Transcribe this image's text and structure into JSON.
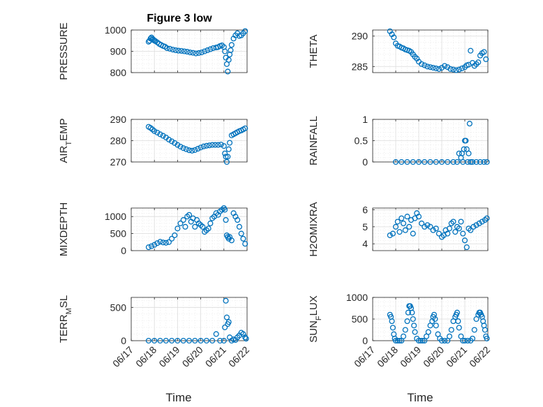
{
  "figure": {
    "title": "Figure 3 low",
    "xlabel": "Time",
    "colors": {
      "marker": "#0072BD",
      "axis": "#262626",
      "grid": "#dcdcdc"
    }
  },
  "chart_data": [
    {
      "type": "scatter",
      "ylabel": "PRESSURE",
      "title": "Figure 3 low",
      "xlim": [
        "06/17",
        "06/22"
      ],
      "ylim": [
        800,
        1000
      ],
      "xticks": [
        "06/17",
        "06/18",
        "06/19",
        "06/20",
        "06/21",
        "06/22"
      ],
      "yticks": [
        800,
        900,
        1000
      ],
      "grid": true,
      "series": [
        {
          "x": [
            "06/17 18:00",
            "06/17 19:00",
            "06/17 20:00",
            "06/17 21:00",
            "06/17 22:00",
            "06/17 23:00",
            "06/18 00:00",
            "06/18 01:00",
            "06/18 03:00",
            "06/18 05:00",
            "06/18 07:00",
            "06/18 09:00",
            "06/18 11:00",
            "06/18 13:00",
            "06/18 16:00",
            "06/18 19:00",
            "06/18 22:00",
            "06/19 01:00",
            "06/19 04:00",
            "06/19 07:00",
            "06/19 10:00",
            "06/19 13:00",
            "06/19 16:00",
            "06/19 19:00",
            "06/19 22:00",
            "06/20 01:00",
            "06/20 04:00",
            "06/20 07:00",
            "06/20 10:00",
            "06/20 13:00",
            "06/20 16:00",
            "06/20 18:00",
            "06/20 20:00",
            "06/20 22:00",
            "06/21 00:00",
            "06/21 01:00",
            "06/21 02:00",
            "06/21 03:00",
            "06/21 04:00",
            "06/21 05:00",
            "06/21 06:00",
            "06/21 07:00",
            "06/21 08:00",
            "06/21 10:00",
            "06/21 12:00",
            "06/21 14:00",
            "06/21 16:00",
            "06/21 18:00",
            "06/21 20:00",
            "06/21 22:00"
          ],
          "y": [
            945,
            950,
            960,
            965,
            958,
            955,
            950,
            948,
            942,
            935,
            930,
            925,
            922,
            915,
            912,
            908,
            905,
            903,
            902,
            900,
            898,
            895,
            893,
            890,
            892,
            895,
            900,
            905,
            910,
            915,
            918,
            920,
            925,
            928,
            920,
            900,
            870,
            840,
            805,
            860,
            885,
            905,
            930,
            960,
            975,
            985,
            972,
            975,
            985,
            995
          ]
        }
      ]
    },
    {
      "type": "scatter",
      "ylabel": "THETA",
      "xlim": [
        "06/17",
        "06/22"
      ],
      "ylim": [
        284,
        291
      ],
      "xticks": [
        "06/17",
        "06/18",
        "06/19",
        "06/20",
        "06/21",
        "06/22"
      ],
      "yticks": [
        285,
        290
      ],
      "grid": true,
      "series": [
        {
          "x": [
            "06/17 18:00",
            "06/17 20:00",
            "06/17 22:00",
            "06/18 00:00",
            "06/18 02:00",
            "06/18 04:00",
            "06/18 06:00",
            "06/18 08:00",
            "06/18 10:00",
            "06/18 12:00",
            "06/18 14:00",
            "06/18 16:00",
            "06/18 18:00",
            "06/18 20:00",
            "06/18 22:00",
            "06/19 00:00",
            "06/19 03:00",
            "06/19 06:00",
            "06/19 09:00",
            "06/19 12:00",
            "06/19 15:00",
            "06/19 18:00",
            "06/19 21:00",
            "06/20 00:00",
            "06/20 03:00",
            "06/20 06:00",
            "06/20 09:00",
            "06/20 12:00",
            "06/20 15:00",
            "06/20 18:00",
            "06/20 21:00",
            "06/21 00:00",
            "06/21 02:00",
            "06/21 04:00",
            "06/21 06:00",
            "06/21 08:00",
            "06/21 10:00",
            "06/21 12:00",
            "06/21 14:00",
            "06/21 16:00",
            "06/21 18:00",
            "06/21 20:00",
            "06/21 22:00"
          ],
          "y": [
            290.8,
            290.3,
            289.8,
            288.8,
            288.4,
            288.3,
            288.1,
            288.0,
            287.8,
            287.7,
            287.6,
            287.4,
            287.0,
            286.6,
            286.3,
            285.8,
            285.4,
            285.2,
            285.0,
            284.9,
            284.8,
            284.7,
            284.6,
            284.8,
            285.1,
            284.9,
            284.6,
            284.5,
            284.4,
            284.5,
            284.7,
            284.9,
            285.2,
            285.3,
            287.6,
            285.6,
            285.1,
            285.4,
            285.7,
            286.8,
            287.2,
            287.4,
            286.2
          ]
        }
      ]
    },
    {
      "type": "scatter",
      "ylabel": "AIR_TEMP",
      "xlim": [
        "06/17",
        "06/22"
      ],
      "ylim": [
        270,
        290
      ],
      "xticks": [
        "06/17",
        "06/18",
        "06/19",
        "06/20",
        "06/21",
        "06/22"
      ],
      "yticks": [
        270,
        280,
        290
      ],
      "grid": true,
      "series": [
        {
          "x": [
            "06/17 18:00",
            "06/17 20:00",
            "06/17 22:00",
            "06/18 00:00",
            "06/18 03:00",
            "06/18 06:00",
            "06/18 09:00",
            "06/18 12:00",
            "06/18 15:00",
            "06/18 18:00",
            "06/18 21:00",
            "06/19 00:00",
            "06/19 03:00",
            "06/19 06:00",
            "06/19 09:00",
            "06/19 12:00",
            "06/19 15:00",
            "06/19 18:00",
            "06/19 21:00",
            "06/20 00:00",
            "06/20 03:00",
            "06/20 06:00",
            "06/20 09:00",
            "06/20 12:00",
            "06/20 15:00",
            "06/20 18:00",
            "06/20 21:00",
            "06/21 00:00",
            "06/21 01:00",
            "06/21 02:00",
            "06/21 03:00",
            "06/21 04:00",
            "06/21 05:00",
            "06/21 06:00",
            "06/21 08:00",
            "06/21 10:00",
            "06/21 12:00",
            "06/21 14:00",
            "06/21 16:00",
            "06/21 18:00",
            "06/21 20:00",
            "06/21 22:00"
          ],
          "y": [
            286.5,
            286.0,
            285.3,
            284.5,
            283.8,
            283.0,
            282.3,
            281.5,
            280.5,
            279.7,
            278.9,
            278.0,
            277.2,
            276.5,
            276.0,
            275.5,
            275.3,
            275.6,
            276.2,
            276.8,
            277.3,
            277.6,
            277.8,
            278.0,
            278.0,
            278.0,
            278.2,
            277.5,
            274.0,
            272.5,
            270.0,
            272.5,
            276.0,
            279.0,
            282.5,
            283.0,
            283.5,
            284.0,
            284.5,
            284.8,
            285.3,
            285.8
          ]
        }
      ]
    },
    {
      "type": "scatter",
      "ylabel": "RAINFALL",
      "xlim": [
        "06/17",
        "06/22"
      ],
      "ylim": [
        0,
        1
      ],
      "xticks": [
        "06/17",
        "06/18",
        "06/19",
        "06/20",
        "06/21",
        "06/22"
      ],
      "yticks": [
        0,
        0.5,
        1
      ],
      "grid": true,
      "series": [
        {
          "x": [
            "06/18 00:00",
            "06/18 06:00",
            "06/18 12:00",
            "06/18 18:00",
            "06/19 00:00",
            "06/19 06:00",
            "06/19 12:00",
            "06/19 18:00",
            "06/20 00:00",
            "06/20 06:00",
            "06/20 12:00",
            "06/20 16:00",
            "06/20 18:00",
            "06/20 20:00",
            "06/20 21:00",
            "06/20 22:00",
            "06/20 23:00",
            "06/21 00:00",
            "06/21 01:00",
            "06/21 02:00",
            "06/21 03:00",
            "06/21 04:00",
            "06/21 05:00",
            "06/21 06:00",
            "06/21 08:00",
            "06/21 12:00",
            "06/21 16:00",
            "06/21 20:00",
            "06/21 23:00"
          ],
          "y": [
            0,
            0,
            0,
            0,
            0,
            0,
            0,
            0,
            0,
            0,
            0,
            0,
            0.2,
            0.1,
            0.2,
            0,
            0.3,
            0.5,
            0.5,
            0.3,
            0,
            0.2,
            0.9,
            0,
            0,
            0,
            0,
            0,
            0
          ]
        }
      ]
    },
    {
      "type": "scatter",
      "ylabel": "MIXDEPTH",
      "xlim": [
        "06/17",
        "06/22"
      ],
      "ylim": [
        0,
        1250
      ],
      "xticks": [
        "06/17",
        "06/18",
        "06/19",
        "06/20",
        "06/21",
        "06/22"
      ],
      "yticks": [
        0,
        500,
        1000
      ],
      "grid": true,
      "series": [
        {
          "x": [
            "06/17 18:00",
            "06/17 21:00",
            "06/18 00:00",
            "06/18 03:00",
            "06/18 06:00",
            "06/18 09:00",
            "06/18 12:00",
            "06/18 15:00",
            "06/18 18:00",
            "06/18 21:00",
            "06/19 00:00",
            "06/19 03:00",
            "06/19 06:00",
            "06/19 08:00",
            "06/19 10:00",
            "06/19 12:00",
            "06/19 14:00",
            "06/19 16:00",
            "06/19 18:00",
            "06/19 20:00",
            "06/19 22:00",
            "06/20 00:00",
            "06/20 02:00",
            "06/20 04:00",
            "06/20 06:00",
            "06/20 08:00",
            "06/20 10:00",
            "06/20 12:00",
            "06/20 14:00",
            "06/20 16:00",
            "06/20 18:00",
            "06/20 20:00",
            "06/20 22:00",
            "06/21 00:00",
            "06/21 01:00",
            "06/21 02:00",
            "06/21 03:00",
            "06/21 04:00",
            "06/21 05:00",
            "06/21 06:00",
            "06/21 08:00",
            "06/21 10:00",
            "06/21 12:00",
            "06/21 14:00",
            "06/21 16:00",
            "06/21 18:00",
            "06/21 20:00",
            "06/21 22:00"
          ],
          "y": [
            100,
            130,
            170,
            220,
            260,
            240,
            230,
            250,
            350,
            450,
            650,
            800,
            900,
            700,
            1000,
            1050,
            850,
            950,
            700,
            900,
            800,
            750,
            700,
            550,
            600,
            650,
            800,
            950,
            1000,
            1100,
            1050,
            1150,
            1200,
            1250,
            1200,
            900,
            450,
            400,
            350,
            400,
            300,
            1100,
            1000,
            900,
            700,
            500,
            350,
            200
          ]
        }
      ]
    },
    {
      "type": "scatter",
      "ylabel": "H2OMIXRA",
      "xlim": [
        "06/17",
        "06/22"
      ],
      "ylim": [
        3.6,
        6.1
      ],
      "xticks": [
        "06/17",
        "06/18",
        "06/19",
        "06/20",
        "06/21",
        "06/22"
      ],
      "yticks": [
        4,
        5,
        6
      ],
      "grid": true,
      "series": [
        {
          "x": [
            "06/17 18:00",
            "06/17 21:00",
            "06/18 00:00",
            "06/18 02:00",
            "06/18 04:00",
            "06/18 06:00",
            "06/18 08:00",
            "06/18 10:00",
            "06/18 12:00",
            "06/18 14:00",
            "06/18 16:00",
            "06/18 18:00",
            "06/18 20:00",
            "06/18 22:00",
            "06/19 00:00",
            "06/19 03:00",
            "06/19 06:00",
            "06/19 09:00",
            "06/19 12:00",
            "06/19 15:00",
            "06/19 18:00",
            "06/19 21:00",
            "06/20 00:00",
            "06/20 02:00",
            "06/20 04:00",
            "06/20 06:00",
            "06/20 08:00",
            "06/20 10:00",
            "06/20 12:00",
            "06/20 14:00",
            "06/20 16:00",
            "06/20 18:00",
            "06/20 20:00",
            "06/20 22:00",
            "06/21 00:00",
            "06/21 02:00",
            "06/21 04:00",
            "06/21 06:00",
            "06/21 09:00",
            "06/21 12:00",
            "06/21 15:00",
            "06/21 18:00",
            "06/21 21:00",
            "06/21 23:00"
          ],
          "y": [
            4.5,
            4.6,
            5.0,
            5.3,
            4.7,
            5.5,
            5.2,
            4.8,
            5.6,
            5.0,
            5.4,
            4.6,
            5.5,
            5.8,
            5.6,
            5.2,
            5.0,
            5.1,
            5.0,
            4.8,
            4.9,
            4.6,
            4.4,
            4.5,
            4.8,
            4.6,
            4.9,
            5.2,
            5.3,
            4.7,
            5.0,
            4.9,
            5.3,
            4.6,
            4.2,
            3.8,
            4.9,
            4.8,
            5.0,
            5.1,
            5.2,
            5.3,
            5.4,
            5.5
          ]
        }
      ]
    },
    {
      "type": "scatter",
      "ylabel": "TERR_MSL",
      "xlim": [
        "06/17",
        "06/22"
      ],
      "ylim": [
        0,
        650
      ],
      "xticks": [
        "06/17",
        "06/18",
        "06/19",
        "06/20",
        "06/21",
        "06/22"
      ],
      "yticks": [
        0,
        500
      ],
      "grid": true,
      "series": [
        {
          "x": [
            "06/17 18:00",
            "06/18 00:00",
            "06/18 06:00",
            "06/18 12:00",
            "06/18 18:00",
            "06/19 00:00",
            "06/19 06:00",
            "06/19 12:00",
            "06/19 18:00",
            "06/20 00:00",
            "06/20 06:00",
            "06/20 12:00",
            "06/20 16:00",
            "06/20 20:00",
            "06/21 00:00",
            "06/21 01:00",
            "06/21 02:00",
            "06/21 03:00",
            "06/21 04:00",
            "06/21 05:00",
            "06/21 06:00",
            "06/21 08:00",
            "06/21 10:00",
            "06/21 12:00",
            "06/21 14:00",
            "06/21 16:00",
            "06/21 18:00",
            "06/21 20:00",
            "06/21 22:00",
            "06/21 23:00"
          ],
          "y": [
            0,
            0,
            0,
            0,
            0,
            0,
            0,
            0,
            0,
            0,
            0,
            0,
            100,
            0,
            0,
            200,
            600,
            350,
            250,
            280,
            50,
            0,
            20,
            10,
            50,
            80,
            120,
            100,
            50,
            30
          ]
        }
      ]
    },
    {
      "type": "scatter",
      "ylabel": "SUN_FLUX",
      "xlim": [
        "06/17",
        "06/22"
      ],
      "ylim": [
        0,
        1000
      ],
      "xticks": [
        "06/17",
        "06/18",
        "06/19",
        "06/20",
        "06/21",
        "06/22"
      ],
      "yticks": [
        0,
        500,
        1000
      ],
      "grid": true,
      "series": [
        {
          "x": [
            "06/17 18:00",
            "06/17 19:00",
            "06/17 20:00",
            "06/17 21:00",
            "06/17 22:00",
            "06/17 23:00",
            "06/18 00:00",
            "06/18 02:00",
            "06/18 04:00",
            "06/18 06:00",
            "06/18 08:00",
            "06/18 10:00",
            "06/18 12:00",
            "06/18 13:00",
            "06/18 14:00",
            "06/18 15:00",
            "06/18 16:00",
            "06/18 17:00",
            "06/18 18:00",
            "06/18 19:00",
            "06/18 20:00",
            "06/18 22:00",
            "06/19 00:00",
            "06/19 02:00",
            "06/19 04:00",
            "06/19 06:00",
            "06/19 08:00",
            "06/19 10:00",
            "06/19 12:00",
            "06/19 14:00",
            "06/19 15:00",
            "06/19 16:00",
            "06/19 17:00",
            "06/19 18:00",
            "06/19 20:00",
            "06/19 22:00",
            "06/20 00:00",
            "06/20 03:00",
            "06/20 06:00",
            "06/20 08:00",
            "06/20 10:00",
            "06/20 12:00",
            "06/20 14:00",
            "06/20 15:00",
            "06/20 16:00",
            "06/20 17:00",
            "06/20 18:00",
            "06/20 20:00",
            "06/20 22:00",
            "06/21 00:00",
            "06/21 03:00",
            "06/21 06:00",
            "06/21 08:00",
            "06/21 10:00",
            "06/21 12:00",
            "06/21 14:00",
            "06/21 15:00",
            "06/21 16:00",
            "06/21 17:00",
            "06/21 18:00",
            "06/21 19:00",
            "06/21 20:00",
            "06/21 21:00",
            "06/21 22:00",
            "06/21 23:00"
          ],
          "y": [
            600,
            550,
            450,
            300,
            150,
            50,
            0,
            0,
            0,
            0,
            100,
            250,
            450,
            650,
            800,
            800,
            750,
            650,
            500,
            350,
            200,
            50,
            0,
            0,
            0,
            0,
            100,
            200,
            350,
            450,
            550,
            600,
            500,
            350,
            150,
            50,
            0,
            0,
            0,
            100,
            250,
            450,
            550,
            600,
            650,
            450,
            300,
            100,
            0,
            0,
            0,
            0,
            50,
            250,
            500,
            600,
            650,
            650,
            600,
            550,
            450,
            350,
            250,
            100,
            50
          ]
        }
      ]
    }
  ]
}
